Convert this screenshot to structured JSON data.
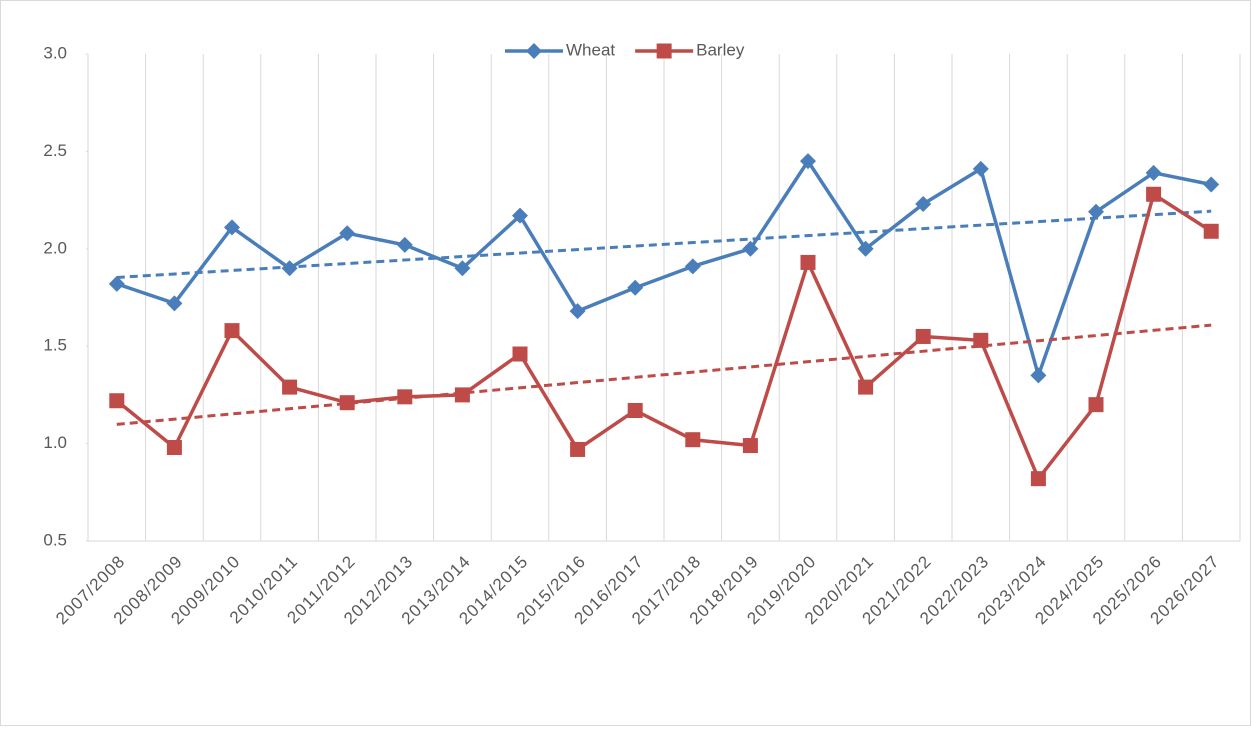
{
  "chart_data": {
    "type": "line",
    "categories": [
      "2007/2008",
      "2008/2009",
      "2009/2010",
      "2010/2011",
      "2011/2012",
      "2012/2013",
      "2013/2014",
      "2014/2015",
      "2015/2016",
      "2016/2017",
      "2017/2018",
      "2018/2019",
      "2019/2020",
      "2020/2021",
      "2021/2022",
      "2022/2023",
      "2023/2024",
      "2024/2025",
      "2025/2026",
      "2026/2027"
    ],
    "series": [
      {
        "name": "Wheat",
        "color": "#4a7ebb",
        "marker": "diamond",
        "values": [
          1.82,
          1.72,
          2.11,
          1.9,
          2.08,
          2.02,
          1.9,
          2.17,
          1.68,
          1.8,
          1.91,
          2.0,
          2.45,
          2.0,
          2.23,
          2.41,
          1.35,
          2.19,
          2.39,
          2.33
        ]
      },
      {
        "name": "Barley",
        "color": "#be4b48",
        "marker": "square",
        "values": [
          1.22,
          0.98,
          1.58,
          1.29,
          1.21,
          1.24,
          1.25,
          1.46,
          0.97,
          1.17,
          1.02,
          0.99,
          1.93,
          1.29,
          1.55,
          1.53,
          0.82,
          1.2,
          2.28,
          2.09
        ]
      }
    ],
    "ylim": [
      0.5,
      3.0
    ],
    "yticks": [
      {
        "value": 0.5,
        "label": "0.5"
      },
      {
        "value": 1,
        "label": "1.0"
      },
      1.5,
      {
        "value": 2,
        "label": "2.0"
      },
      2.5,
      {
        "value": 3,
        "label": "3.0"
      }
    ],
    "trendline": true,
    "legend": "top",
    "grid": "x"
  }
}
